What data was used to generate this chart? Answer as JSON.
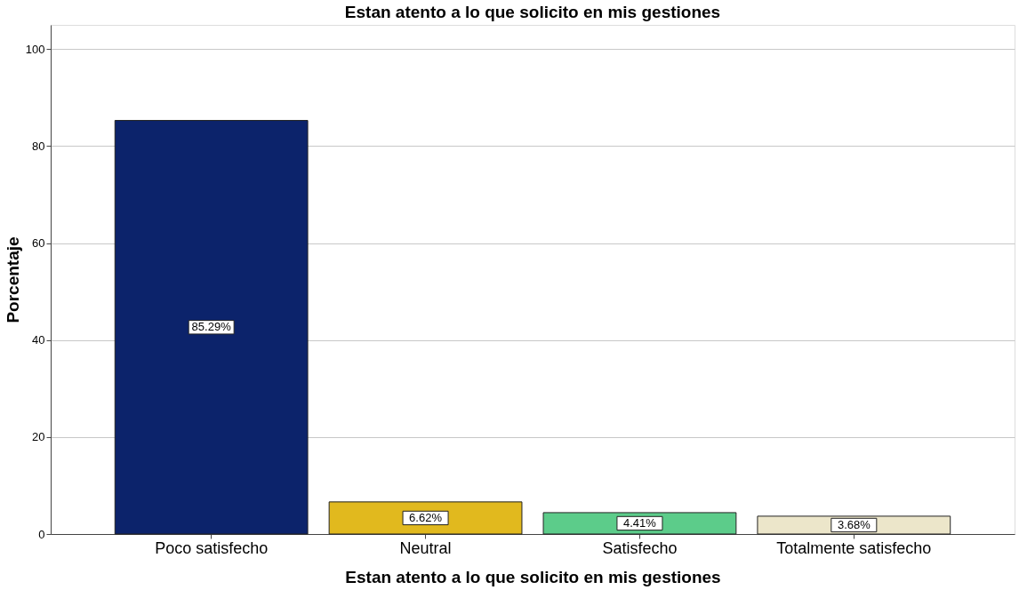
{
  "chart_data": {
    "type": "bar",
    "title": "Estan atento a lo que solicito en mis gestiones",
    "xlabel": "Estan atento a lo que solicito en mis gestiones",
    "ylabel": "Porcentaje",
    "categories": [
      "Poco satisfecho",
      "Neutral",
      "Satisfecho",
      "Totalmente satisfecho"
    ],
    "values": [
      85.29,
      6.62,
      4.41,
      3.68
    ],
    "colors": [
      "#0c236b",
      "#e1b91e",
      "#5ccc8a",
      "#ece6ca"
    ],
    "value_labels": [
      "85.29%",
      "6.62%",
      "4.41%",
      "3.68%"
    ],
    "ylim": [
      0,
      105
    ],
    "yticks": [
      0,
      20,
      40,
      60,
      80,
      100
    ],
    "grid": "y",
    "legend": false
  }
}
